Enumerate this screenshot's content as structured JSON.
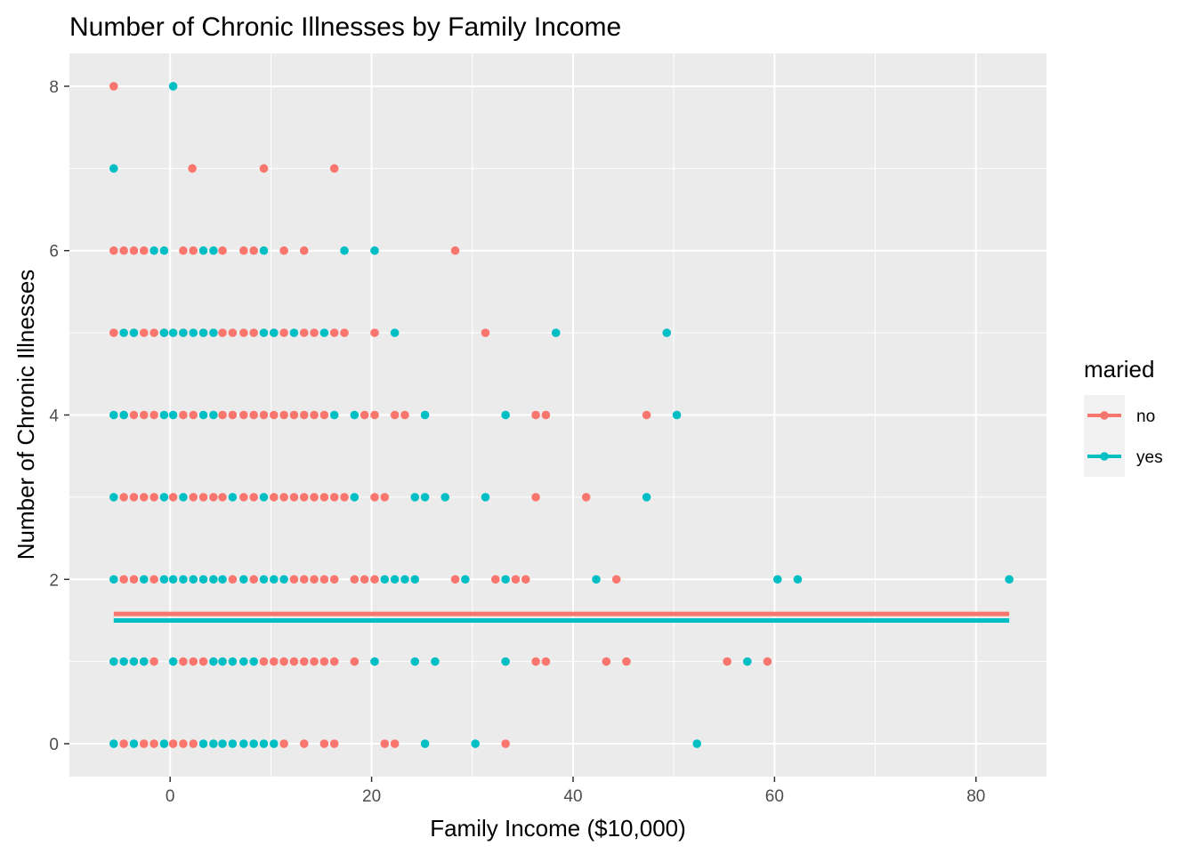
{
  "chart_data": {
    "type": "scatter",
    "title": "Number of Chronic Illnesses by Family Income",
    "xlabel": "Family Income ($10,000)",
    "ylabel": "Number of  Chronic Illnesses",
    "xlim": [
      -10,
      87
    ],
    "ylim": [
      -0.4,
      8.4
    ],
    "x_ticks": [
      0,
      20,
      40,
      60,
      80
    ],
    "y_ticks": [
      0,
      2,
      4,
      6,
      8
    ],
    "grid": true,
    "legend": {
      "title": "maried",
      "position": "right"
    },
    "series": [
      {
        "name": "no",
        "color": "#F8766D",
        "points": [
          [
            -5.6,
            8
          ],
          [
            2.2,
            7
          ],
          [
            9.3,
            7
          ],
          [
            16.3,
            7
          ],
          [
            -5.6,
            6
          ],
          [
            -4.6,
            6
          ],
          [
            -3.6,
            6
          ],
          [
            -2.6,
            6
          ],
          [
            1.3,
            6
          ],
          [
            2.3,
            6
          ],
          [
            5.2,
            6
          ],
          [
            7.3,
            6
          ],
          [
            8.3,
            6
          ],
          [
            11.3,
            6
          ],
          [
            13.3,
            6
          ],
          [
            28.3,
            6
          ],
          [
            -5.6,
            5
          ],
          [
            -3.6,
            5
          ],
          [
            -2.6,
            5
          ],
          [
            -1.6,
            5
          ],
          [
            -0.6,
            5
          ],
          [
            1.3,
            5
          ],
          [
            3.3,
            5
          ],
          [
            5.2,
            5
          ],
          [
            6.2,
            5
          ],
          [
            7.3,
            5
          ],
          [
            8.3,
            5
          ],
          [
            10.3,
            5
          ],
          [
            11.3,
            5
          ],
          [
            13.3,
            5
          ],
          [
            14.3,
            5
          ],
          [
            16.3,
            5
          ],
          [
            17.3,
            5
          ],
          [
            20.3,
            5
          ],
          [
            31.3,
            5
          ],
          [
            -4.6,
            4
          ],
          [
            -3.6,
            4
          ],
          [
            -2.6,
            4
          ],
          [
            -1.6,
            4
          ],
          [
            1.3,
            4
          ],
          [
            2.3,
            4
          ],
          [
            5.2,
            4
          ],
          [
            6.2,
            4
          ],
          [
            7.3,
            4
          ],
          [
            8.3,
            4
          ],
          [
            9.3,
            4
          ],
          [
            10.3,
            4
          ],
          [
            11.3,
            4
          ],
          [
            12.3,
            4
          ],
          [
            13.3,
            4
          ],
          [
            14.3,
            4
          ],
          [
            15.3,
            4
          ],
          [
            19.3,
            4
          ],
          [
            20.3,
            4
          ],
          [
            22.3,
            4
          ],
          [
            23.3,
            4
          ],
          [
            36.3,
            4
          ],
          [
            37.3,
            4
          ],
          [
            47.3,
            4
          ],
          [
            -4.6,
            3
          ],
          [
            -3.6,
            3
          ],
          [
            -2.6,
            3
          ],
          [
            -1.6,
            3
          ],
          [
            0.3,
            3
          ],
          [
            2.3,
            3
          ],
          [
            3.3,
            3
          ],
          [
            4.3,
            3
          ],
          [
            5.2,
            3
          ],
          [
            7.3,
            3
          ],
          [
            8.3,
            3
          ],
          [
            10.3,
            3
          ],
          [
            11.3,
            3
          ],
          [
            12.3,
            3
          ],
          [
            13.3,
            3
          ],
          [
            14.3,
            3
          ],
          [
            15.3,
            3
          ],
          [
            16.3,
            3
          ],
          [
            17.3,
            3
          ],
          [
            20.3,
            3
          ],
          [
            21.3,
            3
          ],
          [
            36.3,
            3
          ],
          [
            41.3,
            3
          ],
          [
            -4.6,
            2
          ],
          [
            -3.6,
            2
          ],
          [
            -1.6,
            2
          ],
          [
            6.2,
            2
          ],
          [
            8.3,
            2
          ],
          [
            12.3,
            2
          ],
          [
            13.3,
            2
          ],
          [
            14.3,
            2
          ],
          [
            15.3,
            2
          ],
          [
            16.3,
            2
          ],
          [
            18.3,
            2
          ],
          [
            19.3,
            2
          ],
          [
            20.3,
            2
          ],
          [
            28.3,
            2
          ],
          [
            32.3,
            2
          ],
          [
            34.3,
            2
          ],
          [
            35.3,
            2
          ],
          [
            44.3,
            2
          ],
          [
            -2.6,
            1
          ],
          [
            -1.6,
            1
          ],
          [
            1.3,
            1
          ],
          [
            2.3,
            1
          ],
          [
            3.3,
            1
          ],
          [
            9.3,
            1
          ],
          [
            10.3,
            1
          ],
          [
            11.3,
            1
          ],
          [
            12.3,
            1
          ],
          [
            13.3,
            1
          ],
          [
            14.3,
            1
          ],
          [
            15.3,
            1
          ],
          [
            16.3,
            1
          ],
          [
            18.3,
            1
          ],
          [
            36.3,
            1
          ],
          [
            37.3,
            1
          ],
          [
            43.3,
            1
          ],
          [
            45.3,
            1
          ],
          [
            55.3,
            1
          ],
          [
            59.3,
            1
          ],
          [
            -4.6,
            0
          ],
          [
            -2.6,
            0
          ],
          [
            -1.6,
            0
          ],
          [
            0.3,
            0
          ],
          [
            1.3,
            0
          ],
          [
            2.3,
            0
          ],
          [
            11.3,
            0
          ],
          [
            13.3,
            0
          ],
          [
            15.3,
            0
          ],
          [
            16.3,
            0
          ],
          [
            21.3,
            0
          ],
          [
            22.3,
            0
          ],
          [
            33.3,
            0
          ]
        ]
      },
      {
        "name": "yes",
        "color": "#00BFC4",
        "points": [
          [
            0.3,
            8
          ],
          [
            -5.6,
            7
          ],
          [
            -1.6,
            6
          ],
          [
            -0.6,
            6
          ],
          [
            3.3,
            6
          ],
          [
            4.3,
            6
          ],
          [
            9.3,
            6
          ],
          [
            17.3,
            6
          ],
          [
            20.3,
            6
          ],
          [
            -4.6,
            5
          ],
          [
            -3.6,
            5
          ],
          [
            -0.6,
            5
          ],
          [
            0.3,
            5
          ],
          [
            1.3,
            5
          ],
          [
            2.3,
            5
          ],
          [
            3.3,
            5
          ],
          [
            4.3,
            5
          ],
          [
            9.3,
            5
          ],
          [
            10.3,
            5
          ],
          [
            12.3,
            5
          ],
          [
            15.3,
            5
          ],
          [
            22.3,
            5
          ],
          [
            38.3,
            5
          ],
          [
            49.3,
            5
          ],
          [
            -5.6,
            4
          ],
          [
            -4.6,
            4
          ],
          [
            -0.6,
            4
          ],
          [
            0.3,
            4
          ],
          [
            3.3,
            4
          ],
          [
            4.3,
            4
          ],
          [
            16.3,
            4
          ],
          [
            18.3,
            4
          ],
          [
            25.3,
            4
          ],
          [
            33.3,
            4
          ],
          [
            50.3,
            4
          ],
          [
            -5.6,
            3
          ],
          [
            -0.6,
            3
          ],
          [
            1.3,
            3
          ],
          [
            6.2,
            3
          ],
          [
            9.3,
            3
          ],
          [
            18.3,
            3
          ],
          [
            24.3,
            3
          ],
          [
            25.3,
            3
          ],
          [
            27.3,
            3
          ],
          [
            31.3,
            3
          ],
          [
            47.3,
            3
          ],
          [
            -5.6,
            2
          ],
          [
            -2.6,
            2
          ],
          [
            -0.6,
            2
          ],
          [
            0.3,
            2
          ],
          [
            1.3,
            2
          ],
          [
            2.3,
            2
          ],
          [
            3.3,
            2
          ],
          [
            4.3,
            2
          ],
          [
            5.2,
            2
          ],
          [
            7.3,
            2
          ],
          [
            9.3,
            2
          ],
          [
            10.3,
            2
          ],
          [
            11.3,
            2
          ],
          [
            21.3,
            2
          ],
          [
            22.3,
            2
          ],
          [
            23.3,
            2
          ],
          [
            24.3,
            2
          ],
          [
            29.3,
            2
          ],
          [
            33.3,
            2
          ],
          [
            42.3,
            2
          ],
          [
            60.3,
            2
          ],
          [
            62.3,
            2
          ],
          [
            83.3,
            2
          ],
          [
            -5.6,
            1
          ],
          [
            -4.6,
            1
          ],
          [
            -3.6,
            1
          ],
          [
            -2.6,
            1
          ],
          [
            0.3,
            1
          ],
          [
            4.3,
            1
          ],
          [
            5.2,
            1
          ],
          [
            6.2,
            1
          ],
          [
            7.3,
            1
          ],
          [
            8.3,
            1
          ],
          [
            20.3,
            1
          ],
          [
            24.3,
            1
          ],
          [
            26.3,
            1
          ],
          [
            33.3,
            1
          ],
          [
            57.3,
            1
          ],
          [
            -5.6,
            0
          ],
          [
            -3.6,
            0
          ],
          [
            -0.6,
            0
          ],
          [
            3.3,
            0
          ],
          [
            4.3,
            0
          ],
          [
            5.2,
            0
          ],
          [
            6.2,
            0
          ],
          [
            7.3,
            0
          ],
          [
            8.3,
            0
          ],
          [
            9.3,
            0
          ],
          [
            10.3,
            0
          ],
          [
            25.3,
            0
          ],
          [
            30.3,
            0
          ],
          [
            52.3,
            0
          ]
        ]
      }
    ],
    "fit_lines": [
      {
        "series": "no",
        "x": [
          -5.6,
          83.3
        ],
        "y": [
          1.58,
          1.58
        ]
      },
      {
        "series": "yes",
        "x": [
          -5.6,
          83.3
        ],
        "y": [
          1.5,
          1.5
        ]
      }
    ]
  }
}
